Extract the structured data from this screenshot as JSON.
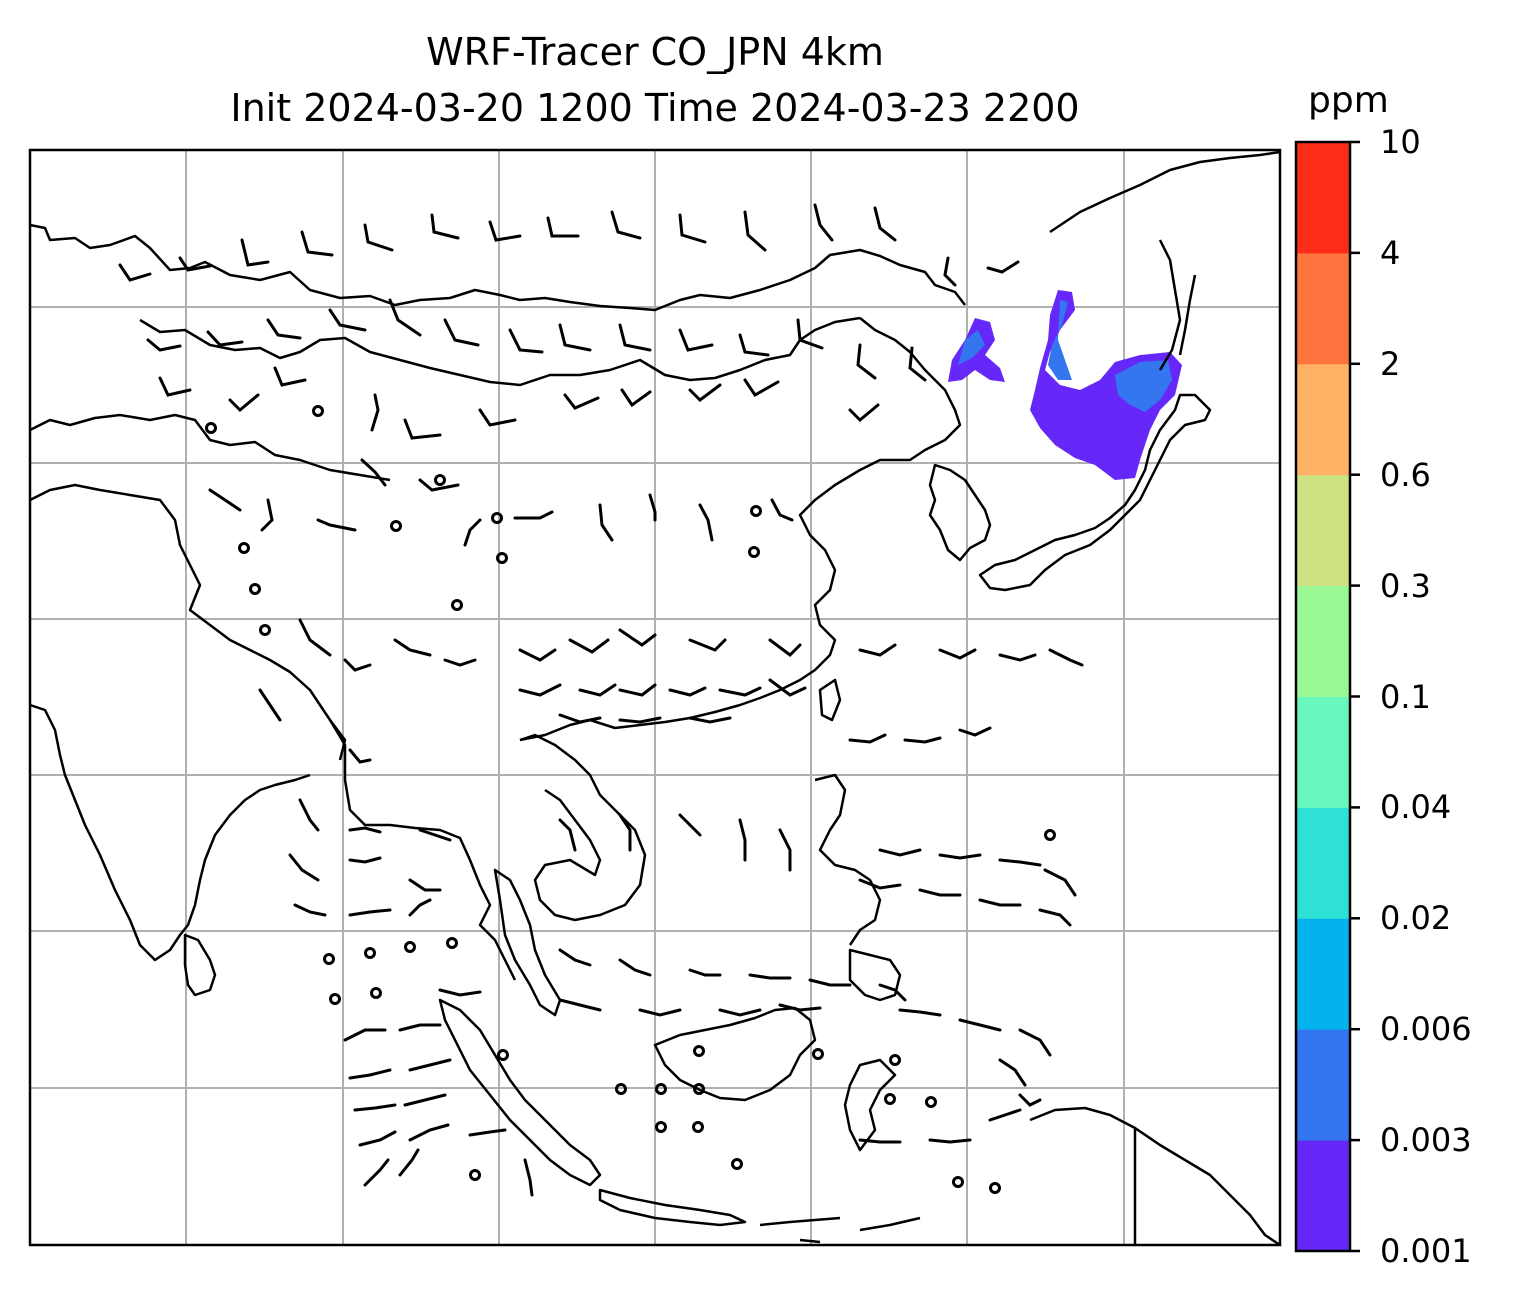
{
  "title": {
    "line1": "WRF-Tracer CO_JPN 4km",
    "line2": "Init 2024-03-20 1200 Time 2024-03-23 2200"
  },
  "colorbar": {
    "unit": "ppm",
    "levels": [
      "0.001",
      "0.003",
      "0.006",
      "0.02",
      "0.04",
      "0.1",
      "0.3",
      "0.6",
      "2",
      "4",
      "10"
    ],
    "colors": [
      "#6628f8",
      "#3376f0",
      "#03b3ec",
      "#2fe0d6",
      "#68f7bd",
      "#99f995",
      "#cde282",
      "#ffb263",
      "#ff743f",
      "#fe2d18"
    ]
  },
  "map": {
    "gridlines": true,
    "wind_barbs": true,
    "tracer_plume": {
      "region": "Japan",
      "levels_present": [
        "0.001",
        "0.003"
      ]
    }
  }
}
